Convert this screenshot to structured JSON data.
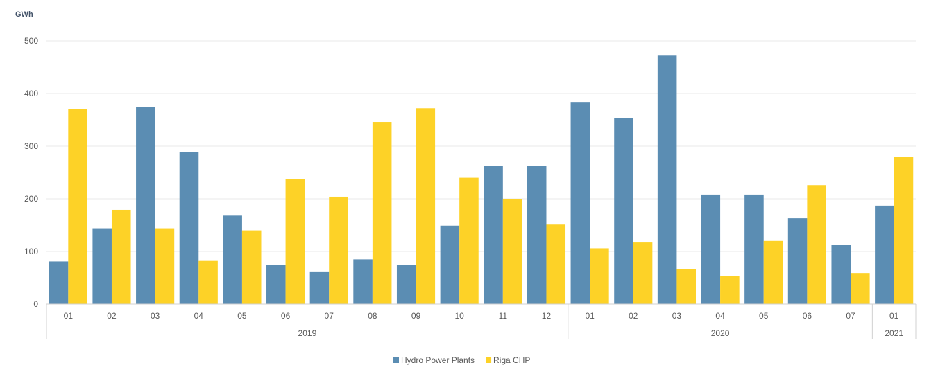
{
  "chart_data": {
    "type": "bar",
    "title": "",
    "ylabel": "GWh",
    "xlabel": "",
    "ylim": [
      0,
      500
    ],
    "yticks": [
      0,
      100,
      200,
      300,
      400,
      500
    ],
    "grid": true,
    "legend_position": "bottom-center",
    "groups": [
      {
        "year": "2019",
        "months": [
          "01",
          "02",
          "03",
          "04",
          "05",
          "06",
          "07",
          "08",
          "09",
          "10",
          "11",
          "12"
        ]
      },
      {
        "year": "2020",
        "months": [
          "01",
          "02",
          "03",
          "04",
          "05",
          "06",
          "07"
        ]
      },
      {
        "year": "2021",
        "months": [
          "01"
        ]
      }
    ],
    "categories": [
      "2019-01",
      "2019-02",
      "2019-03",
      "2019-04",
      "2019-05",
      "2019-06",
      "2019-07",
      "2019-08",
      "2019-09",
      "2019-10",
      "2019-11",
      "2019-12",
      "2020-01",
      "2020-02",
      "2020-03",
      "2020-04",
      "2020-05",
      "2020-06",
      "2020-07",
      "2021-01"
    ],
    "series": [
      {
        "name": "Hydro Power Plants",
        "color": "#5b8db3",
        "values": [
          81,
          144,
          375,
          289,
          168,
          74,
          62,
          85,
          75,
          149,
          262,
          263,
          384,
          353,
          472,
          208,
          208,
          163,
          112,
          187
        ]
      },
      {
        "name": "Riga CHP",
        "color": "#fdd227",
        "values": [
          371,
          179,
          144,
          82,
          140,
          237,
          204,
          346,
          372,
          240,
          200,
          151,
          106,
          117,
          67,
          53,
          120,
          226,
          59,
          279
        ]
      }
    ],
    "colors": {
      "grid": "#e8e8e8",
      "axis": "#d0d0d0",
      "text": "#595959"
    }
  }
}
